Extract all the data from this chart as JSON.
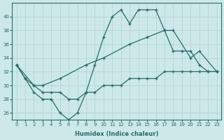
{
  "xlabel": "Humidex (Indice chaleur)",
  "xlim": [
    -0.5,
    23.5
  ],
  "ylim": [
    25,
    42
  ],
  "yticks": [
    26,
    28,
    30,
    32,
    34,
    36,
    38,
    40
  ],
  "xticks": [
    0,
    1,
    2,
    3,
    4,
    5,
    6,
    7,
    8,
    9,
    10,
    11,
    12,
    13,
    14,
    15,
    16,
    17,
    18,
    19,
    20,
    21,
    22,
    23
  ],
  "bg_color": "#cce8e8",
  "line_color": "#2a6b6b",
  "grid_color": "#b8d8d8",
  "line1_x": [
    0,
    1,
    2,
    3,
    4,
    5,
    6,
    7,
    8,
    9,
    10,
    11,
    12,
    13,
    14,
    15,
    16,
    17,
    18,
    19,
    20,
    21,
    22,
    23
  ],
  "line1_y": [
    33,
    31,
    29,
    28,
    28,
    26,
    25,
    26,
    29,
    33,
    37,
    40,
    41,
    39,
    41,
    41,
    41,
    38,
    35,
    35,
    35,
    33,
    32,
    32
  ],
  "line2_x": [
    0,
    2,
    3,
    5,
    8,
    10,
    13,
    15,
    17,
    18,
    20,
    21,
    23
  ],
  "line2_y": [
    33,
    30,
    30,
    31,
    33,
    34,
    36,
    37,
    38,
    38,
    34,
    35,
    32
  ],
  "line3_x": [
    0,
    1,
    2,
    3,
    4,
    5,
    6,
    7,
    8,
    9,
    10,
    11,
    12,
    13,
    14,
    15,
    16,
    17,
    18,
    19,
    20,
    21,
    22,
    23
  ],
  "line3_y": [
    33,
    31,
    30,
    29,
    29,
    29,
    28,
    28,
    29,
    29,
    30,
    30,
    30,
    31,
    31,
    31,
    31,
    32,
    32,
    32,
    32,
    32,
    32,
    32
  ]
}
